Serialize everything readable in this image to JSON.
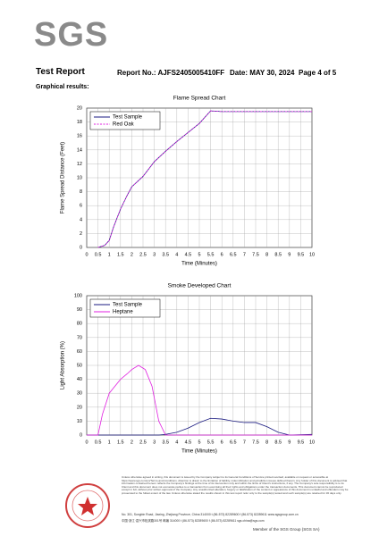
{
  "header": {
    "logo": "SGS",
    "title": "Test Report",
    "report_no": "Report No.: AJFS2405005410FF",
    "date": "Date: MAY 30, 2024",
    "page": "Page 4 of 5"
  },
  "section_title": "Graphical results:",
  "chart_data": [
    {
      "type": "line",
      "title": "Flame Spread Chart",
      "x_label": "Time (Minutes)",
      "y_label": "Flame Spread Distance (Feet)",
      "x": [
        0.5,
        0.8,
        1,
        1.2,
        1.5,
        1.8,
        2,
        2.5,
        3,
        3.5,
        4,
        4.5,
        5,
        5.5,
        6,
        7,
        8,
        9,
        10
      ],
      "series": [
        {
          "name": "Test Sample",
          "color": "#1a1a80",
          "style": "solid",
          "values": [
            0,
            0.3,
            1,
            3,
            5.5,
            7.5,
            8.7,
            10.2,
            12.3,
            13.8,
            15.2,
            16.5,
            17.8,
            19.6,
            19.5,
            19.5,
            19.5,
            19.5,
            19.5
          ]
        },
        {
          "name": "Red Oak",
          "color": "#e020e0",
          "style": "dashed",
          "values": [
            0,
            0.3,
            1,
            3,
            5.5,
            7.5,
            8.7,
            10.2,
            12.3,
            13.8,
            15.2,
            16.5,
            17.8,
            19.6,
            19.5,
            19.5,
            19.5,
            19.5,
            19.5
          ]
        }
      ],
      "xlim": [
        0,
        10
      ],
      "xticks": [
        0,
        0.5,
        1,
        1.5,
        2,
        2.5,
        3,
        3.5,
        4,
        4.5,
        5,
        5.5,
        6,
        6.5,
        7,
        7.5,
        8,
        8.5,
        9,
        9.5,
        10
      ],
      "ylim": [
        0,
        20
      ],
      "yticks": [
        0,
        2,
        4,
        6,
        8,
        10,
        12,
        14,
        16,
        18,
        20
      ],
      "grid": true,
      "legend": "upper left"
    },
    {
      "type": "line",
      "title": "Smoke Developed Chart",
      "x_label": "Time (Minutes)",
      "y_label": "Light Absorption (%)",
      "x": [
        0,
        0.5,
        0.7,
        1,
        1.3,
        1.5,
        1.8,
        2,
        2.3,
        2.6,
        2.9,
        3.2,
        3.5,
        4,
        4.5,
        5,
        5.5,
        6,
        6.5,
        7,
        7.5,
        8,
        8.5,
        9,
        10
      ],
      "series": [
        {
          "name": "Test Sample",
          "color": "#1a1a80",
          "style": "solid",
          "values": [
            0,
            0,
            0,
            0,
            0,
            0,
            0,
            0,
            0,
            0,
            0,
            0,
            0.5,
            2,
            5,
            9,
            12,
            11.5,
            10,
            9,
            9,
            6,
            2,
            0,
            0.5
          ]
        },
        {
          "name": "Heptane",
          "color": "#e020e0",
          "style": "solid",
          "values": [
            0,
            0,
            15,
            30,
            36,
            40,
            44,
            47,
            50,
            47,
            35,
            10,
            0,
            0,
            0,
            0,
            0,
            0,
            0,
            0,
            0,
            0,
            0,
            0,
            0
          ]
        }
      ],
      "xlim": [
        0,
        10
      ],
      "xticks": [
        0,
        0.5,
        1,
        1.5,
        2,
        2.5,
        3,
        3.5,
        4,
        4.5,
        5,
        5.5,
        6,
        6.5,
        7,
        7.5,
        8,
        8.5,
        9,
        9.5,
        10
      ],
      "ylim": [
        0,
        100
      ],
      "yticks": [
        0,
        10,
        20,
        30,
        40,
        50,
        60,
        70,
        80,
        90,
        100
      ],
      "grid": true,
      "legend": "upper left"
    }
  ],
  "footer": {
    "disclaimer": "Unless otherwise agreed in writing, this document is issued by the Company subject to its General Conditions of Service printed overleaf, available on request or accessible at https://www.sgs.com/en/Terms-and-Conditions. Attention is drawn to the limitation of liability, indemnification and jurisdiction issues defined therein. Any holder of this document is advised that information contained hereon reflects the Company's findings at the time of its intervention only and within the limits of Client's instructions, if any. The Company's sole responsibility is to its Client and this document does not exonerate parties to a transaction from exercising all their rights and obligations under the transaction documents. This document cannot be reproduced except in full, without prior written approval of the Company. Any unauthorized alteration, forgery or falsification of the content or appearance of this document is unlawful and offenders may be prosecuted to the fullest extent of the law. Unless otherwise stated the results shown in this test report refer only to the sample(s) tested and such sample(s) are retained for 30 days only.",
    "address": [
      "No. 301, Songbin Road, Jiaxing, Zhejiang Province, China 314000   t (86-573) 82289600   f (86-573) 82289611   www.sgsgroup.com.cn",
      "中国·浙江·嘉兴市松滨路301号   邮编 314000   t (86-573) 82289600   f (86-573) 82289611   sgs.china@sgs.com"
    ],
    "member": "Member of the SGS Group (SGS SA)"
  }
}
